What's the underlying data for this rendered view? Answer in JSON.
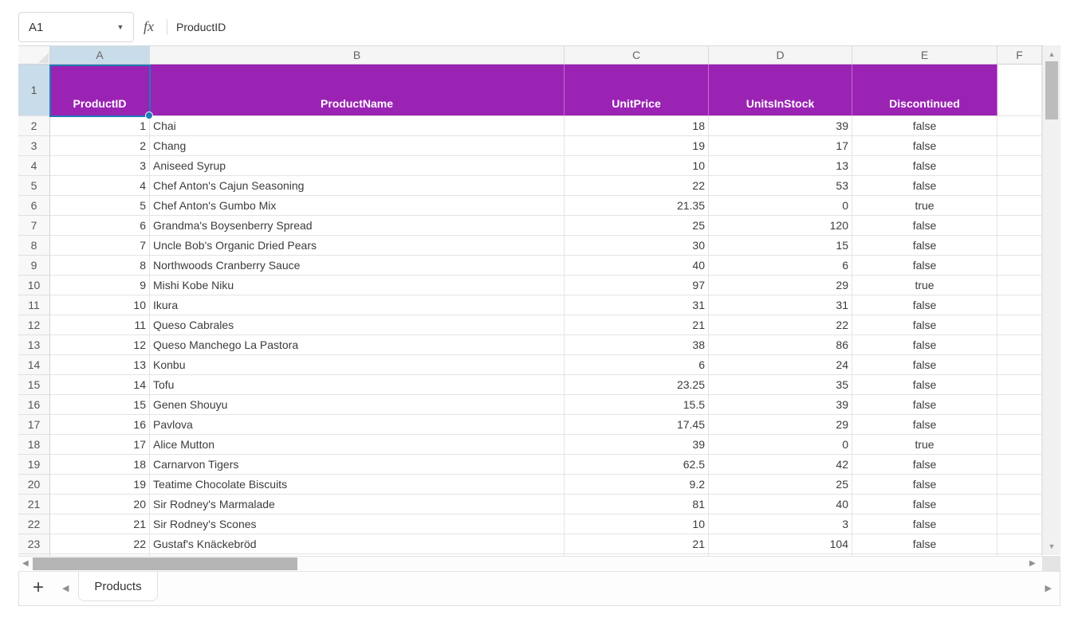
{
  "formula_bar": {
    "cell_reference": "A1",
    "fx_label": "fx",
    "formula_value": "ProductID"
  },
  "grid": {
    "column_letters": [
      "A",
      "B",
      "C",
      "D",
      "E",
      "F"
    ],
    "row_numbers": [
      "1",
      "2",
      "3",
      "4",
      "5",
      "6",
      "7",
      "8",
      "9",
      "10",
      "11",
      "12",
      "13",
      "14",
      "15",
      "16",
      "17",
      "18",
      "19",
      "20",
      "21",
      "22",
      "23"
    ],
    "selected_cell": "A1"
  },
  "table": {
    "headers": [
      "ProductID",
      "ProductName",
      "UnitPrice",
      "UnitsInStock",
      "Discontinued"
    ],
    "products": [
      {
        "id": 1,
        "name": "Chai",
        "unit_price": 18,
        "units_in_stock": 39,
        "discontinued": "false"
      },
      {
        "id": 2,
        "name": "Chang",
        "unit_price": 19,
        "units_in_stock": 17,
        "discontinued": "false"
      },
      {
        "id": 3,
        "name": "Aniseed Syrup",
        "unit_price": 10,
        "units_in_stock": 13,
        "discontinued": "false"
      },
      {
        "id": 4,
        "name": "Chef Anton's Cajun Seasoning",
        "unit_price": 22,
        "units_in_stock": 53,
        "discontinued": "false"
      },
      {
        "id": 5,
        "name": "Chef Anton's Gumbo Mix",
        "unit_price": 21.35,
        "units_in_stock": 0,
        "discontinued": "true"
      },
      {
        "id": 6,
        "name": "Grandma's Boysenberry Spread",
        "unit_price": 25,
        "units_in_stock": 120,
        "discontinued": "false"
      },
      {
        "id": 7,
        "name": "Uncle Bob's Organic Dried Pears",
        "unit_price": 30,
        "units_in_stock": 15,
        "discontinued": "false"
      },
      {
        "id": 8,
        "name": "Northwoods Cranberry Sauce",
        "unit_price": 40,
        "units_in_stock": 6,
        "discontinued": "false"
      },
      {
        "id": 9,
        "name": "Mishi Kobe Niku",
        "unit_price": 97,
        "units_in_stock": 29,
        "discontinued": "true"
      },
      {
        "id": 10,
        "name": "Ikura",
        "unit_price": 31,
        "units_in_stock": 31,
        "discontinued": "false"
      },
      {
        "id": 11,
        "name": "Queso Cabrales",
        "unit_price": 21,
        "units_in_stock": 22,
        "discontinued": "false"
      },
      {
        "id": 12,
        "name": "Queso Manchego La Pastora",
        "unit_price": 38,
        "units_in_stock": 86,
        "discontinued": "false"
      },
      {
        "id": 13,
        "name": "Konbu",
        "unit_price": 6,
        "units_in_stock": 24,
        "discontinued": "false"
      },
      {
        "id": 14,
        "name": "Tofu",
        "unit_price": 23.25,
        "units_in_stock": 35,
        "discontinued": "false"
      },
      {
        "id": 15,
        "name": "Genen Shouyu",
        "unit_price": 15.5,
        "units_in_stock": 39,
        "discontinued": "false"
      },
      {
        "id": 16,
        "name": "Pavlova",
        "unit_price": 17.45,
        "units_in_stock": 29,
        "discontinued": "false"
      },
      {
        "id": 17,
        "name": "Alice Mutton",
        "unit_price": 39,
        "units_in_stock": 0,
        "discontinued": "true"
      },
      {
        "id": 18,
        "name": "Carnarvon Tigers",
        "unit_price": 62.5,
        "units_in_stock": 42,
        "discontinued": "false"
      },
      {
        "id": 19,
        "name": "Teatime Chocolate Biscuits",
        "unit_price": 9.2,
        "units_in_stock": 25,
        "discontinued": "false"
      },
      {
        "id": 20,
        "name": "Sir Rodney's Marmalade",
        "unit_price": 81,
        "units_in_stock": 40,
        "discontinued": "false"
      },
      {
        "id": 21,
        "name": "Sir Rodney's Scones",
        "unit_price": 10,
        "units_in_stock": 3,
        "discontinued": "false"
      },
      {
        "id": 22,
        "name": "Gustaf's Knäckebröd",
        "unit_price": 21,
        "units_in_stock": 104,
        "discontinued": "false"
      }
    ]
  },
  "sheet_bar": {
    "add_label": "+",
    "tabs": [
      {
        "label": "Products",
        "active": true
      }
    ]
  },
  "icons": {
    "dropdown": "▼",
    "up": "▲",
    "down": "▼",
    "left": "◀",
    "right": "▶",
    "tab_prev": "◀",
    "tab_next": "▶"
  },
  "colors": {
    "header_row_fill": "#9b23b4",
    "header_row_text": "#ffffff",
    "selection_border": "#1d7bb8",
    "selected_header_fill": "#c9dcea"
  }
}
